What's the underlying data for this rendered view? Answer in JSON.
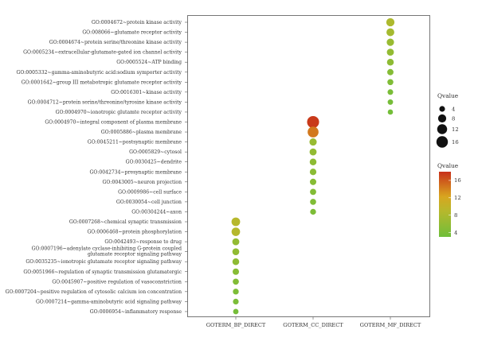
{
  "chart_data": {
    "type": "scatter",
    "x_categories": [
      "GOTERM_BP_DIRECT",
      "GOTERM_CC_DIRECT",
      "GOTERM_MF_DIRECT"
    ],
    "y_categories": [
      "GO:0004672~protein kinase activity",
      "GO:008066~glutamate receptor activity",
      "GO:0004674~protein serine/threonine kinase activity",
      "GO:0005234~extracellular-glutamate-gated ion channel activity",
      "GO:0005524~ATP binding",
      "GO:0005332~gamma-aminobutyric acid:sodium symporter activity",
      "GO:0001642~group III metabotropic glutamate receptor activity",
      "GO:0016301~kinase activity",
      "GO:0004712~protein serine/threonine/tyrosine kinase activity",
      "GO:0004970~ionotropic glutamte receptor activity",
      "GO:0004970~integral component of plasma membrane",
      "GO:0005886~plasma membrane",
      "GO:0045211~postsynaptic membrane",
      "GO:0005829~cytosol",
      "GO:0030425~dendrite",
      "GO:0042734~presynaptic membrane",
      "GO:0043005~neuron projection",
      "GO:0009986~cell surface",
      "GO:0030054~cell junction",
      "GO:00304244~axon",
      "GO:0007268~chemical synaptic transmission",
      "GO:0006468~protein phosphorylation",
      "GO:0042493~response to drug",
      "GO:0007196~adenylate cyclase-inhibiting G-protein coupled\nglutamate receptor signaling pathway",
      "GO:0035235~ionotropic glutamate receptor signaling pathway",
      "GO:0051966~regulation of synaptic transmission glutamatergic",
      "GO:0045907~positive regulation of vasoconstriction",
      "GO:0007204~positive regulation of cytosolic calcium ion concentration",
      "GO:0007214~gamma-aminobutyric acid signaling pathway",
      "GO:0006954~inflammatory response"
    ],
    "points": [
      {
        "x": "GOTERM_MF_DIRECT",
        "y": "GO:0004672~protein kinase activity",
        "qvalue": 8.2
      },
      {
        "x": "GOTERM_MF_DIRECT",
        "y": "GO:008066~glutamate receptor activity",
        "qvalue": 7.5
      },
      {
        "x": "GOTERM_MF_DIRECT",
        "y": "GO:0004674~protein serine/threonine kinase activity",
        "qvalue": 6.5
      },
      {
        "x": "GOTERM_MF_DIRECT",
        "y": "GO:0005234~extracellular-glutamate-gated ion channel activity",
        "qvalue": 6.0
      },
      {
        "x": "GOTERM_MF_DIRECT",
        "y": "GO:0005524~ATP binding",
        "qvalue": 5.6
      },
      {
        "x": "GOTERM_MF_DIRECT",
        "y": "GO:0005332~gamma-aminobutyric acid:sodium symporter activity",
        "qvalue": 4.8
      },
      {
        "x": "GOTERM_MF_DIRECT",
        "y": "GO:0001642~group III metabotropic glutamate receptor activity",
        "qvalue": 4.4
      },
      {
        "x": "GOTERM_MF_DIRECT",
        "y": "GO:0016301~kinase activity",
        "qvalue": 3.9
      },
      {
        "x": "GOTERM_MF_DIRECT",
        "y": "GO:0004712~protein serine/threonine/tyrosine kinase activity",
        "qvalue": 3.6
      },
      {
        "x": "GOTERM_MF_DIRECT",
        "y": "GO:0004970~ionotropic glutamte receptor activity",
        "qvalue": 3.4
      },
      {
        "x": "GOTERM_CC_DIRECT",
        "y": "GO:0004970~integral component of plasma membrane",
        "qvalue": 17.5
      },
      {
        "x": "GOTERM_CC_DIRECT",
        "y": "GO:0005886~plasma membrane",
        "qvalue": 14.5
      },
      {
        "x": "GOTERM_CC_DIRECT",
        "y": "GO:0045211~postsynaptic membrane",
        "qvalue": 6.4
      },
      {
        "x": "GOTERM_CC_DIRECT",
        "y": "GO:0005829~cytosol",
        "qvalue": 6.0
      },
      {
        "x": "GOTERM_CC_DIRECT",
        "y": "GO:0030425~dendrite",
        "qvalue": 5.6
      },
      {
        "x": "GOTERM_CC_DIRECT",
        "y": "GO:0042734~presynaptic membrane",
        "qvalue": 5.3
      },
      {
        "x": "GOTERM_CC_DIRECT",
        "y": "GO:0043005~neuron projection",
        "qvalue": 5.0
      },
      {
        "x": "GOTERM_CC_DIRECT",
        "y": "GO:0009986~cell surface",
        "qvalue": 4.7
      },
      {
        "x": "GOTERM_CC_DIRECT",
        "y": "GO:0030054~cell junction",
        "qvalue": 4.5
      },
      {
        "x": "GOTERM_CC_DIRECT",
        "y": "GO:00304244~axon",
        "qvalue": 4.2
      },
      {
        "x": "GOTERM_BP_DIRECT",
        "y": "GO:0007268~chemical synaptic transmission",
        "qvalue": 9.0
      },
      {
        "x": "GOTERM_BP_DIRECT",
        "y": "GO:0006468~protein phosphorylation",
        "qvalue": 8.8
      },
      {
        "x": "GOTERM_BP_DIRECT",
        "y": "GO:0042493~response to drug",
        "qvalue": 6.0
      },
      {
        "x": "GOTERM_BP_DIRECT",
        "y": "GO:0007196~adenylate cyclase-inhibiting G-protein coupled\nglutamate receptor signaling pathway",
        "qvalue": 5.8
      },
      {
        "x": "GOTERM_BP_DIRECT",
        "y": "GO:0035235~ionotropic glutamate receptor signaling pathway",
        "qvalue": 5.6
      },
      {
        "x": "GOTERM_BP_DIRECT",
        "y": "GO:0051966~regulation of synaptic transmission glutamatergic",
        "qvalue": 5.0
      },
      {
        "x": "GOTERM_BP_DIRECT",
        "y": "GO:0045907~positive regulation of vasoconstriction",
        "qvalue": 4.6
      },
      {
        "x": "GOTERM_BP_DIRECT",
        "y": "GO:0007204~positive regulation of cytosolic calcium ion concentration",
        "qvalue": 4.2
      },
      {
        "x": "GOTERM_BP_DIRECT",
        "y": "GO:0007214~gamma-aminobutyric acid signaling pathway",
        "qvalue": 4.0
      },
      {
        "x": "GOTERM_BP_DIRECT",
        "y": "GO:0006954~inflammatory response",
        "qvalue": 3.6
      }
    ],
    "size_legend": {
      "title": "Qvalue",
      "values": [
        4,
        8,
        12,
        16
      ]
    },
    "color_legend": {
      "title": "Qvalue",
      "ticks": [
        4,
        8,
        12,
        16
      ],
      "range": [
        3,
        18
      ],
      "colors": [
        "#7fbf3f",
        "#c9b623",
        "#cd3218"
      ]
    },
    "grid": false
  }
}
